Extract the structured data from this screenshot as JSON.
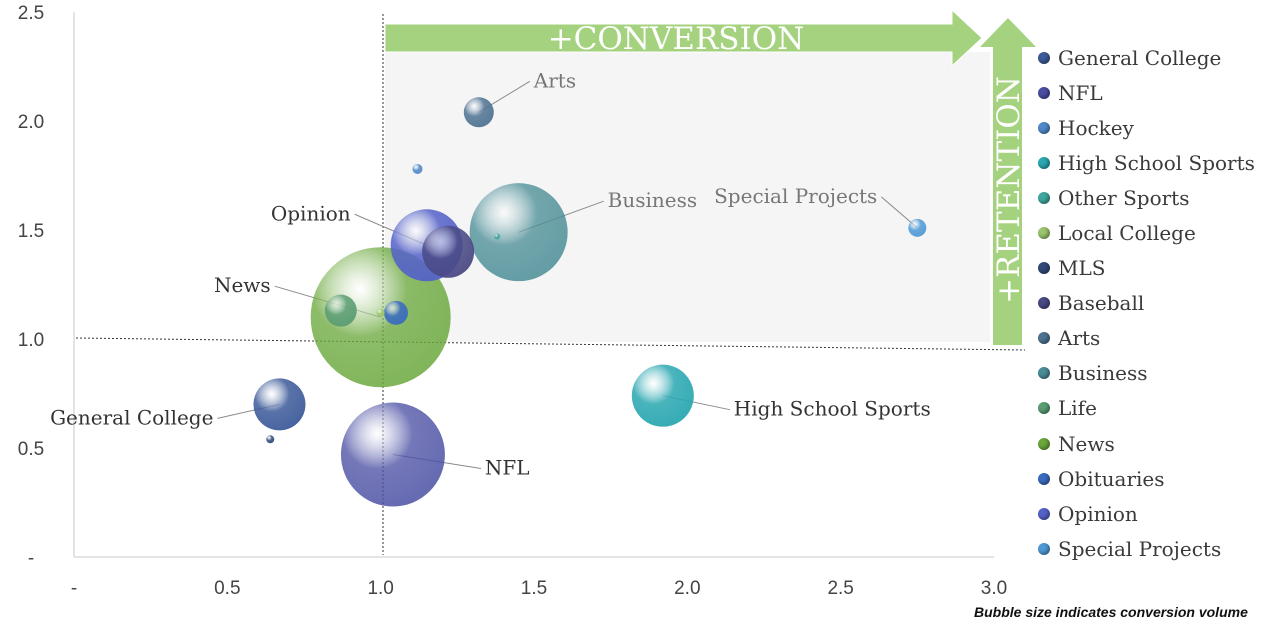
{
  "chart_data": {
    "type": "bubble",
    "x_ticks": [
      "-",
      "0.5",
      "1.0",
      "1.5",
      "2.0",
      "2.5",
      "3.0"
    ],
    "y_ticks": [
      "-",
      "0.5",
      "1.0",
      "1.5",
      "2.0",
      "2.5"
    ],
    "xlim": [
      0,
      3.0
    ],
    "ylim": [
      0,
      2.5
    ],
    "reference_lines": {
      "x": 1.0,
      "y": 1.0
    },
    "arrows": {
      "x_label": "+CONVERSION",
      "y_label": "+RETENTION"
    },
    "footnote": "Bubble size indicates conversion volume",
    "legend_position": "right",
    "series": [
      {
        "name": "General College",
        "color": "#3d5b9a",
        "points": [
          {
            "x": 0.67,
            "y": 0.7,
            "r": 26
          }
        ]
      },
      {
        "name": "NFL",
        "color": "#4a4fa3",
        "points": [
          {
            "x": 1.04,
            "y": 0.47,
            "r": 52
          }
        ]
      },
      {
        "name": "Hockey",
        "color": "#5189c9",
        "points": [
          {
            "x": 1.12,
            "y": 1.78,
            "r": 5
          }
        ]
      },
      {
        "name": "High School Sports",
        "color": "#2aa7b0",
        "points": [
          {
            "x": 1.92,
            "y": 0.74,
            "r": 31
          }
        ]
      },
      {
        "name": "Other Sports",
        "color": "#3fa8a0",
        "points": [
          {
            "x": 1.38,
            "y": 1.47,
            "r": 3
          }
        ]
      },
      {
        "name": "Local College",
        "color": "#9cc46e",
        "points": [
          {
            "x": 1.0,
            "y": 1.12,
            "r": 4
          }
        ]
      },
      {
        "name": "MLS",
        "color": "#334a7a",
        "points": [
          {
            "x": 0.64,
            "y": 0.54,
            "r": 4
          }
        ]
      },
      {
        "name": "Baseball",
        "color": "#4a4a85",
        "points": [
          {
            "x": 1.22,
            "y": 1.4,
            "r": 26
          }
        ]
      },
      {
        "name": "Arts",
        "color": "#4f7392",
        "points": [
          {
            "x": 1.32,
            "y": 2.04,
            "r": 15
          }
        ]
      },
      {
        "name": "Business",
        "color": "#4a8d96",
        "points": [
          {
            "x": 1.45,
            "y": 1.49,
            "r": 49
          }
        ]
      },
      {
        "name": "Life",
        "color": "#5b9d73",
        "points": [
          {
            "x": 0.87,
            "y": 1.13,
            "r": 16
          }
        ]
      },
      {
        "name": "News",
        "color": "#6aa83c",
        "points": [
          {
            "x": 1.0,
            "y": 1.1,
            "r": 70
          }
        ]
      },
      {
        "name": "Obituaries",
        "color": "#3a6bbf",
        "points": [
          {
            "x": 1.05,
            "y": 1.12,
            "r": 12
          }
        ]
      },
      {
        "name": "Opinion",
        "color": "#5562c9",
        "points": [
          {
            "x": 1.15,
            "y": 1.43,
            "r": 36
          }
        ]
      },
      {
        "name": "Special Projects",
        "color": "#4f9ad6",
        "points": [
          {
            "x": 2.75,
            "y": 1.51,
            "r": 9
          }
        ]
      }
    ],
    "annotations": [
      {
        "text": "Arts",
        "target": "Arts",
        "side": "right",
        "dark": false
      },
      {
        "text": "Opinion",
        "target": "Opinion",
        "side": "left",
        "dark": true
      },
      {
        "text": "Business",
        "target": "Business",
        "side": "right",
        "dark": false
      },
      {
        "text": "News",
        "target": "News",
        "side": "left",
        "dark": true
      },
      {
        "text": "Special Projects",
        "target": "Special Projects",
        "side": "left",
        "dark": false
      },
      {
        "text": "General College",
        "target": "General College",
        "side": "left",
        "dark": true
      },
      {
        "text": "NFL",
        "target": "NFL",
        "side": "right",
        "dark": true
      },
      {
        "text": "High School Sports",
        "target": "High School Sports",
        "side": "right",
        "dark": true
      }
    ]
  }
}
